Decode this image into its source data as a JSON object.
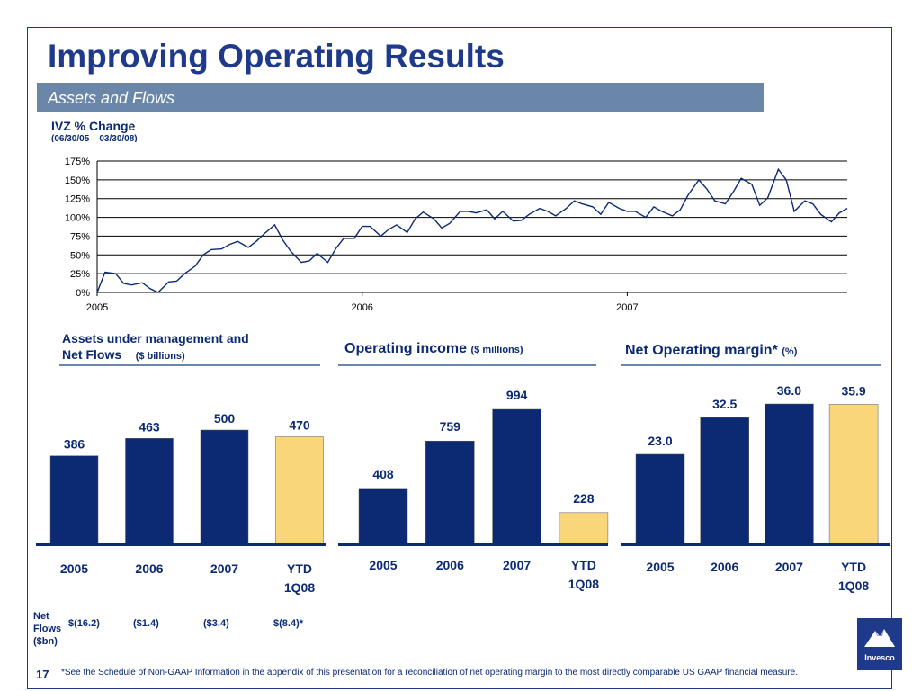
{
  "title": "Improving Operating Results",
  "band": "Assets and Flows",
  "ivz": {
    "title": "IVZ % Change",
    "subtitle": "(06/30/05 – 03/30/08)"
  },
  "chart_data": [
    {
      "type": "line",
      "title": "IVZ % Change",
      "subtitle": "(06/30/05 – 03/30/08)",
      "yticks": [
        "0%",
        "25%",
        "50%",
        "75%",
        "100%",
        "125%",
        "150%",
        "175%"
      ],
      "ylim": [
        0,
        175
      ],
      "xticks": [
        "2005",
        "2006",
        "2007"
      ],
      "xlim": [
        2005.0,
        2007.83
      ],
      "grid": true,
      "x": [
        2005.0,
        2005.03,
        2005.07,
        2005.1,
        2005.13,
        2005.17,
        2005.2,
        2005.23,
        2005.27,
        2005.3,
        2005.33,
        2005.37,
        2005.4,
        2005.43,
        2005.47,
        2005.5,
        2005.53,
        2005.57,
        2005.6,
        2005.63,
        2005.67,
        2005.7,
        2005.73,
        2005.77,
        2005.8,
        2005.83,
        2005.87,
        2005.9,
        2005.93,
        2005.97,
        2006.0,
        2006.03,
        2006.07,
        2006.1,
        2006.13,
        2006.17,
        2006.2,
        2006.23,
        2006.27,
        2006.3,
        2006.33,
        2006.37,
        2006.4,
        2006.43,
        2006.47,
        2006.5,
        2006.53,
        2006.57,
        2006.6,
        2006.63,
        2006.67,
        2006.7,
        2006.73,
        2006.77,
        2006.8,
        2006.83,
        2006.87,
        2006.9,
        2006.93,
        2006.97,
        2007.0,
        2007.03,
        2007.07,
        2007.1,
        2007.13,
        2007.17,
        2007.2,
        2007.23,
        2007.27,
        2007.3,
        2007.33,
        2007.37,
        2007.4,
        2007.43,
        2007.47,
        2007.5,
        2007.53,
        2007.57,
        2007.6,
        2007.63,
        2007.67,
        2007.7,
        2007.73,
        2007.77,
        2007.8,
        2007.83
      ],
      "values": [
        0,
        27,
        25,
        12,
        10,
        13,
        5,
        0,
        14,
        15,
        25,
        35,
        50,
        57,
        58,
        64,
        68,
        60,
        68,
        78,
        90,
        70,
        55,
        40,
        42,
        52,
        40,
        58,
        72,
        72,
        88,
        88,
        75,
        84,
        90,
        80,
        98,
        107,
        98,
        86,
        92,
        108,
        108,
        106,
        110,
        98,
        108,
        95,
        96,
        104,
        112,
        108,
        102,
        112,
        122,
        118,
        114,
        104,
        120,
        112,
        108,
        108,
        100,
        114,
        108,
        102,
        110,
        130,
        150,
        138,
        122,
        118,
        134,
        152,
        144,
        116,
        126,
        164,
        150,
        108,
        122,
        118,
        104,
        94,
        106,
        112
      ],
      "series": [
        {
          "color": "#0b2a73"
        }
      ]
    },
    {
      "type": "bar",
      "title": "Assets under management and Net Flows",
      "unit": "($ billions)",
      "categories": [
        "2005",
        "2006",
        "2007",
        "YTD 1Q08"
      ],
      "values": [
        386,
        463,
        500,
        470
      ],
      "colors": [
        "#0b2a73",
        "#0b2a73",
        "#0b2a73",
        "#fad67a"
      ],
      "ylim": [
        0,
        600
      ]
    },
    {
      "type": "bar",
      "title": "Operating income",
      "unit": "($ millions)",
      "categories": [
        "2005",
        "2006",
        "2007",
        "YTD 1Q08"
      ],
      "values": [
        408,
        759,
        994,
        228
      ],
      "colors": [
        "#0b2a73",
        "#0b2a73",
        "#0b2a73",
        "#fad67a"
      ],
      "ylim": [
        0,
        1100
      ]
    },
    {
      "type": "bar",
      "title": "Net Operating margin*",
      "unit": "(%)",
      "categories": [
        "2005",
        "2006",
        "2007",
        "YTD 1Q08"
      ],
      "values": [
        23.0,
        32.5,
        36.0,
        35.9
      ],
      "labels": [
        "23.0",
        "32.5",
        "36.0",
        "35.9"
      ],
      "colors": [
        "#0b2a73",
        "#0b2a73",
        "#0b2a73",
        "#fad67a"
      ],
      "ylim": [
        0,
        40
      ]
    }
  ],
  "aum": {
    "title_line1": "Assets under management and",
    "title_line2": "Net Flows",
    "unit": "($ billions)"
  },
  "opinc": {
    "title": "Operating income",
    "unit": "($ millions)"
  },
  "margin": {
    "title": "Net Operating margin*",
    "unit": "(%)"
  },
  "net_flows": {
    "label": [
      "Net",
      "Flows",
      "($bn)"
    ],
    "values": [
      "$(16.2)",
      "($1.4)",
      "($3.4)",
      "$(8.4)*"
    ]
  },
  "page_number": "17",
  "footnote": "*See the Schedule of Non-GAAP Information in the appendix of this presentation for a reconciliation of net operating margin to the most directly comparable US GAAP financial measure.",
  "logo": {
    "text": "Invesco",
    "icon": "invesco-mountain-icon"
  },
  "colors": {
    "navy": "#0b2a73",
    "band": "#6a86a8",
    "highlight": "#fad67a"
  }
}
